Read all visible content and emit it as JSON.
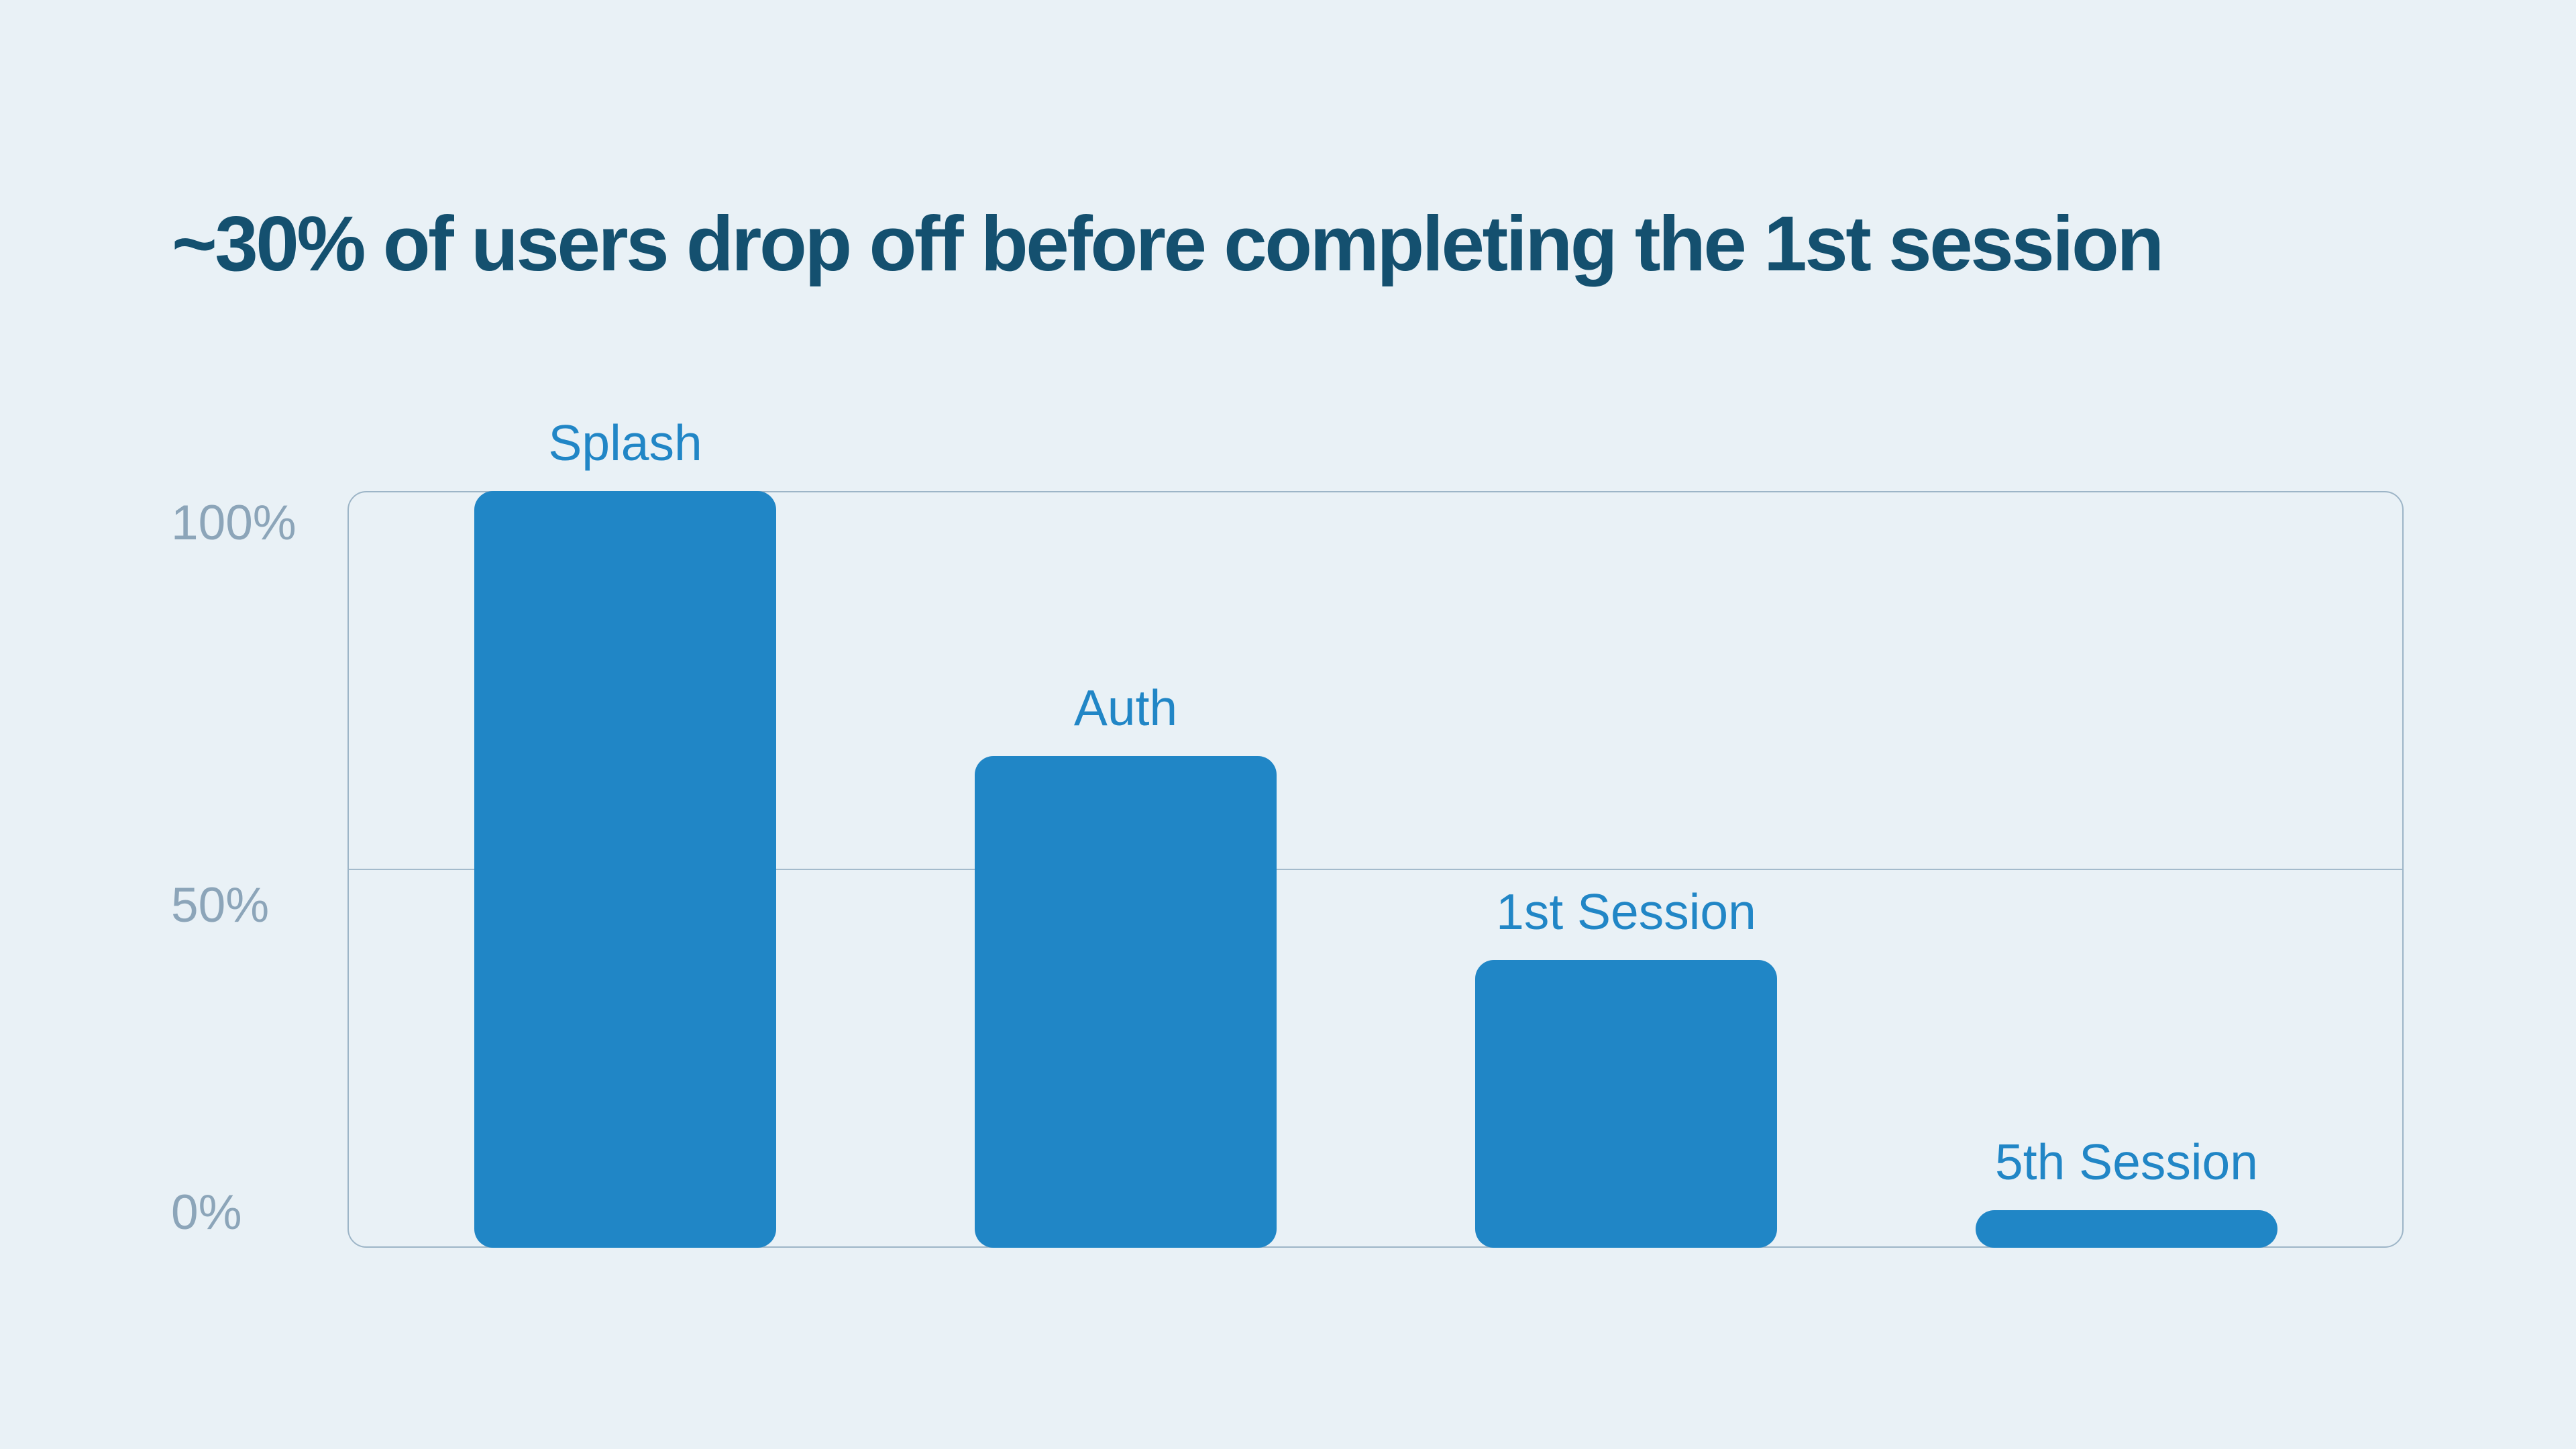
{
  "title": "~30% of users drop off before completing the 1st session",
  "chart_data": {
    "type": "bar",
    "title": "~30% of users drop off before completing the 1st session",
    "categories": [
      "Splash",
      "Auth",
      "1st Session",
      "5th Session"
    ],
    "values": [
      100,
      65,
      38,
      5
    ],
    "unit": "%",
    "xlabel": "",
    "ylabel": "",
    "ylim": [
      0,
      100
    ],
    "y_ticks": [
      "100%",
      "50%",
      "0%"
    ],
    "gridlines": "horizontal at 50%, frame top = 100%, frame bottom = 0%",
    "legend": "none",
    "bar_value_labels": "none (category labels shown above each bar)"
  },
  "colors": {
    "background": "#e9f1f6",
    "title": "#14506f",
    "bar": "#2086c6",
    "bar_label": "#2186c6",
    "axis_label": "#8ca5b9",
    "frame_border": "#9db5c7",
    "gridline": "#a4bbcc"
  }
}
